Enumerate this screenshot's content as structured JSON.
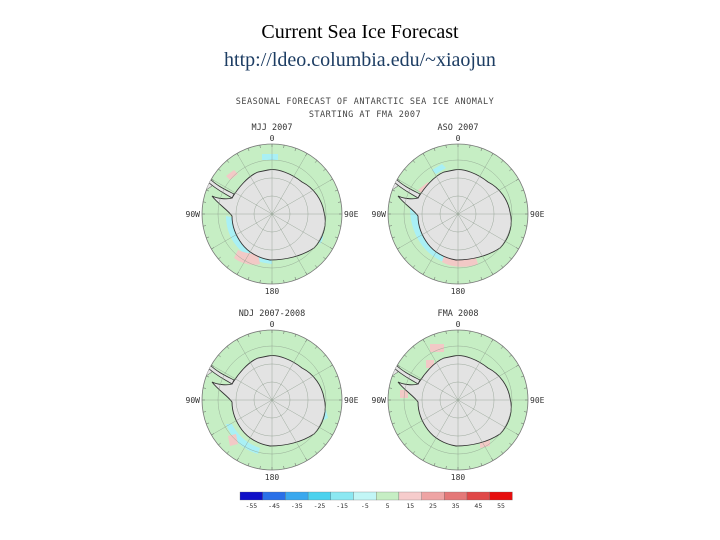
{
  "slide": {
    "title": "Current Sea Ice Forecast",
    "link": "http://ldeo.columbia.edu/~xiaojun"
  },
  "figure": {
    "header_line1": "SEASONAL FORECAST OF ANTARCTIC SEA ICE ANOMALY",
    "header_line2": "STARTING AT FMA 2007",
    "panels": [
      {
        "title": "MJJ 2007",
        "top": "0",
        "bottom": "180",
        "left": "90W",
        "right": "90E"
      },
      {
        "title": "ASO 2007",
        "top": "0",
        "bottom": "180",
        "left": "90W",
        "right": "90E"
      },
      {
        "title": "NDJ 2007-2008",
        "top": "0",
        "bottom": "180",
        "left": "90W",
        "right": "90E"
      },
      {
        "title": "FMA 2008",
        "top": "0",
        "bottom": "180",
        "left": "90W",
        "right": "90E"
      }
    ],
    "colors": {
      "ocean": "#c6eec4",
      "land": "#e3e3e3",
      "grid": "#8a9a8a",
      "neg_anomaly": "#a9f0f5",
      "pos_anomaly": "#f2c9c6"
    },
    "colorbar": {
      "labels": [
        "-55",
        "-45",
        "-35",
        "-25",
        "-15",
        "-5",
        "5",
        "15",
        "25",
        "35",
        "45",
        "55"
      ],
      "colors": [
        "#1010c8",
        "#2a70e8",
        "#3aa8ee",
        "#4cd2ee",
        "#8ce8f2",
        "#c2f6f6",
        "#c6eec4",
        "#f6cccc",
        "#eea4a4",
        "#e47878",
        "#e04848",
        "#e60e0e"
      ]
    }
  }
}
